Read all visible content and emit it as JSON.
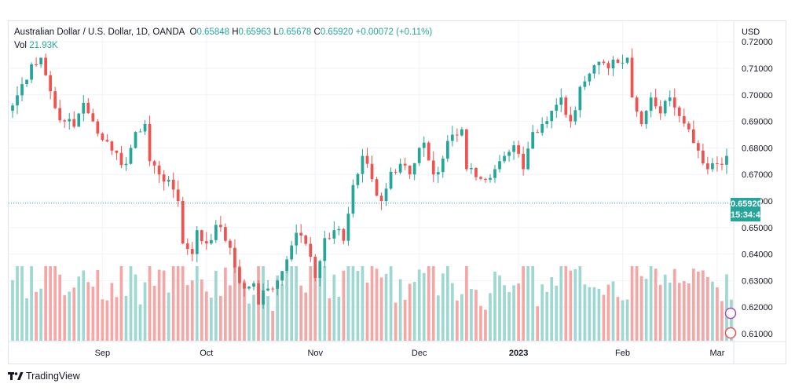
{
  "legend": {
    "symbol": "Australian Dollar / U.S. Dollar, 1D, OANDA",
    "open_key": "O",
    "open": "0.65848",
    "high_key": "H",
    "high": "0.65963",
    "low_key": "L",
    "low": "0.65678",
    "close_key": "C",
    "close": "0.65920",
    "change": "+0.00072 (+0.11%)",
    "vol_key": "Vol",
    "vol": "21.93K"
  },
  "price_axis": {
    "currency": "USD"
  },
  "last_price": {
    "value": "0.65920",
    "countdown": "15:34:41"
  },
  "footer": {
    "brand": "TradingView"
  },
  "colors": {
    "up": "#26a69a",
    "down": "#ef5350",
    "up_volume": "#9fd8d2",
    "down_volume": "#f5a7a6",
    "grid": "#f0f3fa"
  },
  "chart_data": {
    "type": "candlestick",
    "y_ticks": [
      0.61,
      0.62,
      0.63,
      0.64,
      0.65,
      0.66,
      0.67,
      0.68,
      0.69,
      0.7,
      0.71,
      0.72
    ],
    "y_tick_labels": [
      "0.61000",
      "0.62000",
      "0.63000",
      "0.64000",
      "0.65000",
      "0.66000",
      "0.67000",
      "0.68000",
      "0.69000",
      "0.70000",
      "0.71000",
      "0.72000"
    ],
    "ylim": [
      0.6075,
      0.7215
    ],
    "x_labels": [
      {
        "label": "Sep",
        "index": 19
      },
      {
        "label": "Oct",
        "index": 41
      },
      {
        "label": "Nov",
        "index": 64
      },
      {
        "label": "Dec",
        "index": 86
      },
      {
        "label": "2023",
        "index": 107
      },
      {
        "label": "Feb",
        "index": 129
      },
      {
        "label": "Mar",
        "index": 149
      }
    ],
    "total_bars": 153,
    "anchors": [
      [
        0,
        0.696
      ],
      [
        4,
        0.7115
      ],
      [
        6,
        0.714
      ],
      [
        9,
        0.695
      ],
      [
        11,
        0.69
      ],
      [
        13,
        0.688
      ],
      [
        15,
        0.697
      ],
      [
        17,
        0.69
      ],
      [
        19,
        0.683
      ],
      [
        21,
        0.679
      ],
      [
        24,
        0.674
      ],
      [
        26,
        0.686
      ],
      [
        28,
        0.689
      ],
      [
        29,
        0.675
      ],
      [
        31,
        0.67
      ],
      [
        33,
        0.668
      ],
      [
        35,
        0.66
      ],
      [
        36,
        0.644
      ],
      [
        38,
        0.64
      ],
      [
        39,
        0.649
      ],
      [
        41,
        0.644
      ],
      [
        43,
        0.651
      ],
      [
        45,
        0.645
      ],
      [
        47,
        0.635
      ],
      [
        49,
        0.627
      ],
      [
        51,
        0.629
      ],
      [
        52,
        0.621
      ],
      [
        54,
        0.627
      ],
      [
        56,
        0.63
      ],
      [
        58,
        0.638
      ],
      [
        60,
        0.648
      ],
      [
        61,
        0.647
      ],
      [
        63,
        0.639
      ],
      [
        64,
        0.631
      ],
      [
        66,
        0.646
      ],
      [
        68,
        0.649
      ],
      [
        70,
        0.645
      ],
      [
        72,
        0.666
      ],
      [
        74,
        0.677
      ],
      [
        75,
        0.674
      ],
      [
        77,
        0.662
      ],
      [
        78,
        0.66
      ],
      [
        80,
        0.671
      ],
      [
        82,
        0.674
      ],
      [
        84,
        0.67
      ],
      [
        86,
        0.68
      ],
      [
        87,
        0.682
      ],
      [
        89,
        0.67
      ],
      [
        91,
        0.676
      ],
      [
        93,
        0.685
      ],
      [
        95,
        0.687
      ],
      [
        96,
        0.672
      ],
      [
        98,
        0.669
      ],
      [
        100,
        0.668
      ],
      [
        102,
        0.672
      ],
      [
        104,
        0.677
      ],
      [
        106,
        0.681
      ],
      [
        108,
        0.672
      ],
      [
        110,
        0.686
      ],
      [
        112,
        0.689
      ],
      [
        114,
        0.694
      ],
      [
        116,
        0.699
      ],
      [
        118,
        0.69
      ],
      [
        120,
        0.703
      ],
      [
        122,
        0.708
      ],
      [
        124,
        0.7125
      ],
      [
        126,
        0.71
      ],
      [
        128,
        0.712
      ],
      [
        130,
        0.714
      ],
      [
        131,
        0.699
      ],
      [
        133,
        0.689
      ],
      [
        135,
        0.699
      ],
      [
        137,
        0.693
      ],
      [
        139,
        0.699
      ],
      [
        141,
        0.692
      ],
      [
        143,
        0.687
      ],
      [
        145,
        0.679
      ],
      [
        147,
        0.672
      ],
      [
        149,
        0.674
      ],
      [
        151,
        0.677
      ],
      [
        152,
        0.659
      ]
    ],
    "last_candle": {
      "open": 0.65848,
      "high": 0.65963,
      "low": 0.65678,
      "close": 0.6592
    }
  }
}
